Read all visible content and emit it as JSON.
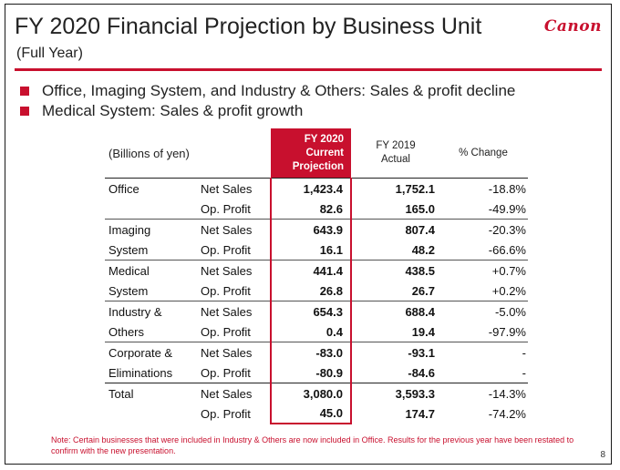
{
  "header": {
    "title": "FY 2020 Financial Projection by Business Unit",
    "subtitle": "(Full Year)",
    "logo_text": "Canon"
  },
  "bullets": [
    "Office, Imaging System, and Industry & Others: Sales & profit decline",
    "Medical System: Sales & profit growth"
  ],
  "table": {
    "unit_label": "(Billions of yen)",
    "col_projection": [
      "FY 2020",
      "Current",
      "Projection"
    ],
    "col_actual": [
      "FY 2019",
      "Actual"
    ],
    "col_change": "% Change",
    "rows": [
      {
        "unit": "Office",
        "metric": "Net Sales",
        "projection": "1,423.4",
        "actual": "1,752.1",
        "change": "-18.8%"
      },
      {
        "unit": "",
        "metric": "Op. Profit",
        "projection": "82.6",
        "actual": "165.0",
        "change": "-49.9%"
      },
      {
        "unit": "Imaging",
        "metric": "Net Sales",
        "projection": "643.9",
        "actual": "807.4",
        "change": "-20.3%"
      },
      {
        "unit": "System",
        "metric": "Op. Profit",
        "projection": "16.1",
        "actual": "48.2",
        "change": "-66.6%"
      },
      {
        "unit": "Medical",
        "metric": "Net Sales",
        "projection": "441.4",
        "actual": "438.5",
        "change": "+0.7%"
      },
      {
        "unit": "System",
        "metric": "Op. Profit",
        "projection": "26.8",
        "actual": "26.7",
        "change": "+0.2%"
      },
      {
        "unit": "Industry &",
        "metric": "Net Sales",
        "projection": "654.3",
        "actual": "688.4",
        "change": "-5.0%"
      },
      {
        "unit": "Others",
        "metric": "Op. Profit",
        "projection": "0.4",
        "actual": "19.4",
        "change": "-97.9%"
      },
      {
        "unit": "Corporate &",
        "metric": "Net Sales",
        "projection": "-83.0",
        "actual": "-93.1",
        "change": "-"
      },
      {
        "unit": "Eliminations",
        "metric": "Op. Profit",
        "projection": "-80.9",
        "actual": "-84.6",
        "change": "-"
      },
      {
        "unit": "Total",
        "metric": "Net Sales",
        "projection": "3,080.0",
        "actual": "3,593.3",
        "change": "-14.3%"
      },
      {
        "unit": "",
        "metric": "Op. Profit",
        "projection": "45.0",
        "actual": "174.7",
        "change": "-74.2%"
      }
    ]
  },
  "note": "Note: Certain businesses that were included in Industry & Others are now included in Office. Results for the previous year have been restated to confirm with the new presentation.",
  "page_number": "8",
  "colors": {
    "accent": "#c8102e"
  }
}
